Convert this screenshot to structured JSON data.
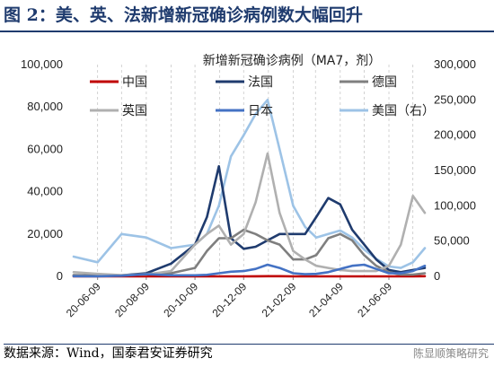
{
  "figure": {
    "title": "图 2：美、英、法新增新冠确诊病例数大幅回升",
    "source": "数据来源：Wind，国泰君安证券研究",
    "watermark": "陈显顺策略研究"
  },
  "chart_data": {
    "type": "line",
    "title": "新增新冠确诊病例（MA7，剂）",
    "x_ticks": [
      "20-06-09",
      "20-08-09",
      "20-10-09",
      "20-12-09",
      "21-02-09",
      "21-04-09",
      "21-06-09"
    ],
    "x": [
      "2020-05-10",
      "2020-06-09",
      "2020-07-09",
      "2020-08-09",
      "2020-09-09",
      "2020-10-09",
      "2020-10-24",
      "2020-11-08",
      "2020-11-23",
      "2020-12-09",
      "2020-12-24",
      "2021-01-08",
      "2021-01-23",
      "2021-02-09",
      "2021-02-24",
      "2021-03-10",
      "2021-03-25",
      "2021-04-09",
      "2021-04-24",
      "2021-05-09",
      "2021-05-24",
      "2021-06-09",
      "2021-06-24",
      "2021-07-09",
      "2021-07-24"
    ],
    "y_left_lim": [
      0,
      100000
    ],
    "y_left_ticks": [
      "0",
      "20,000",
      "40,000",
      "60,000",
      "80,000",
      "100,000"
    ],
    "y_right_lim": [
      0,
      300000
    ],
    "y_right_ticks": [
      "0",
      "50,000",
      "100,000",
      "150,000",
      "200,000",
      "250,000",
      "300,000"
    ],
    "grid": "vertical",
    "legend_position": "top",
    "series": [
      {
        "name": "中国",
        "axis": "left",
        "color": "#c00000",
        "values": [
          20,
          20,
          30,
          20,
          20,
          20,
          20,
          20,
          20,
          20,
          50,
          100,
          80,
          20,
          10,
          10,
          10,
          15,
          15,
          15,
          20,
          20,
          20,
          30,
          100
        ]
      },
      {
        "name": "法国",
        "axis": "left",
        "color": "#1f3b6e",
        "values": [
          500,
          400,
          500,
          1500,
          6000,
          15000,
          28000,
          52000,
          18000,
          13000,
          14000,
          17000,
          20000,
          20000,
          20000,
          28000,
          37000,
          34000,
          22000,
          15000,
          8000,
          3000,
          2000,
          3000,
          4000
        ]
      },
      {
        "name": "德国",
        "axis": "left",
        "color": "#7f7f7f",
        "values": [
          600,
          400,
          400,
          1200,
          1500,
          4000,
          12000,
          18000,
          18000,
          22000,
          20000,
          17000,
          15000,
          8000,
          8000,
          10000,
          18000,
          20000,
          17000,
          10000,
          5000,
          2000,
          800,
          800,
          1500
        ]
      },
      {
        "name": "英国",
        "axis": "left",
        "color": "#b0b0b0",
        "values": [
          2000,
          1200,
          600,
          900,
          2500,
          15000,
          20000,
          24000,
          15000,
          20000,
          35000,
          58000,
          30000,
          12000,
          8000,
          5000,
          4000,
          3000,
          2500,
          2500,
          2500,
          5000,
          15000,
          38000,
          30000
        ]
      },
      {
        "name": "日本",
        "axis": "left",
        "color": "#4472c4",
        "values": [
          100,
          50,
          300,
          1000,
          500,
          500,
          700,
          1500,
          2200,
          2500,
          3500,
          5500,
          4000,
          1500,
          1000,
          1200,
          2000,
          3500,
          5000,
          5500,
          3500,
          1500,
          1500,
          2500,
          5000
        ]
      },
      {
        "name": "美国（右）",
        "axis": "right",
        "color": "#9dc3e6",
        "values": [
          28000,
          20000,
          60000,
          55000,
          40000,
          45000,
          60000,
          100000,
          170000,
          200000,
          230000,
          250000,
          180000,
          100000,
          70000,
          55000,
          60000,
          65000,
          55000,
          38000,
          25000,
          14000,
          12000,
          20000,
          40000
        ]
      }
    ]
  }
}
